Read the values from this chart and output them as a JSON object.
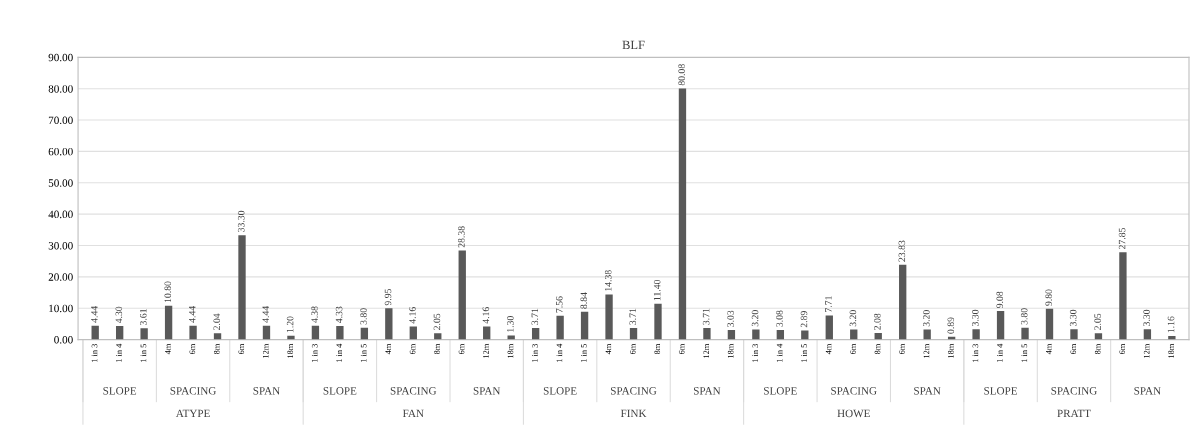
{
  "chart_data": {
    "type": "bar",
    "title": "BLF",
    "categories": [
      "1 in 3",
      "1 in 4",
      "1 in 5",
      "4m",
      "6m",
      "8m",
      "6m",
      "12m",
      "18m",
      "1 in 3",
      "1 in 4",
      "1 in 5",
      "4m",
      "6m",
      "8m",
      "6m",
      "12m",
      "18m",
      "1 in 3",
      "1 in 4",
      "1 in 5",
      "4m",
      "6m",
      "8m",
      "6m",
      "12m",
      "18m",
      "1 in 3",
      "1 in 4",
      "1 in 5",
      "4m",
      "6m",
      "8m",
      "6m",
      "12m",
      "18m",
      "1 in 3",
      "1 in 4",
      "1 in 5",
      "4m",
      "6m",
      "8m",
      "6m",
      "12m",
      "18m"
    ],
    "values": [
      4.44,
      4.3,
      3.61,
      10.8,
      4.44,
      2.04,
      33.3,
      4.44,
      1.2,
      4.38,
      4.33,
      3.8,
      9.95,
      4.16,
      2.05,
      28.38,
      4.16,
      1.3,
      3.71,
      7.56,
      8.84,
      14.38,
      3.71,
      11.4,
      80.08,
      3.71,
      3.03,
      3.2,
      3.08,
      2.89,
      7.71,
      3.2,
      2.08,
      23.83,
      3.2,
      0.89,
      3.3,
      9.08,
      3.8,
      9.8,
      3.3,
      2.05,
      27.85,
      3.3,
      1.16
    ],
    "value_labels": [
      "4.44",
      "4.30",
      "3.61",
      "10.80",
      "4.44",
      "2.04",
      "33.30",
      "4.44",
      "1.20",
      "4.38",
      "4.33",
      "3.80",
      "9.95",
      "4.16",
      "2.05",
      "28.38",
      "4.16",
      "1.30",
      "3.71",
      "7.56",
      "8.84",
      "14.38",
      "3.71",
      "11.40",
      "80.08",
      "3.71",
      "3.03",
      "3.20",
      "3.08",
      "2.89",
      "7.71",
      "3.20",
      "2.08",
      "23.83",
      "3.20",
      "0.89",
      "3.30",
      "9.08",
      "3.80",
      "9.80",
      "3.30",
      "2.05",
      "27.85",
      "3.30",
      "1.16"
    ],
    "color": "#595959",
    "annotations": [
      "SLOPE",
      "SPACING",
      "SPAN",
      "ATYPE",
      "SLOPE",
      "SPACING",
      "SPAN",
      "FAN",
      "SLOPE",
      "SPACING",
      "SPAN",
      "FINK",
      "SLOPE",
      "SPACING",
      "SPAN",
      "HOWE",
      "SLOPE",
      "SPACING",
      "SPAN",
      "PRATT"
    ],
    "ylim": [
      0,
      90
    ],
    "yticks": [
      {
        "value": 0,
        "label": "0.00"
      },
      {
        "value": 10,
        "label": "10.00"
      },
      {
        "value": 20,
        "label": "20.00"
      },
      {
        "value": 30,
        "label": "30.00"
      },
      {
        "value": 40,
        "label": "40.00"
      },
      {
        "value": 50,
        "label": "50.00"
      },
      {
        "value": 60,
        "label": "60.00"
      },
      {
        "value": 70,
        "label": "70.00"
      },
      {
        "value": 80,
        "label": "80.00"
      },
      {
        "value": 90,
        "label": "90.00"
      }
    ],
    "grid": "y"
  }
}
